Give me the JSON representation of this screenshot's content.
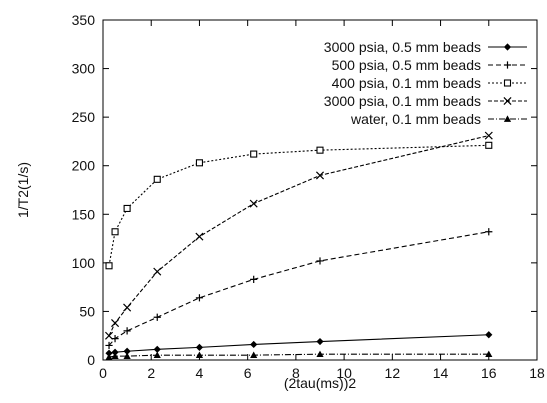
{
  "chart_data": {
    "type": "line",
    "title": "",
    "xlabel": "(2tau(ms))2",
    "ylabel": "1/T2(1/s)",
    "xlim": [
      0,
      18
    ],
    "ylim": [
      0,
      350
    ],
    "x_ticks": [
      0,
      2,
      4,
      6,
      8,
      10,
      12,
      14,
      16,
      18
    ],
    "y_ticks": [
      0,
      50,
      100,
      150,
      200,
      250,
      300,
      350
    ],
    "grid": false,
    "legend_position": "top-right",
    "series": [
      {
        "name": "3000 psia, 0.5 mm beads",
        "marker": "diamond-filled",
        "dash": "solid",
        "points": [
          [
            0.25,
            7
          ],
          [
            0.5,
            8
          ],
          [
            1.0,
            9
          ],
          [
            2.25,
            11
          ],
          [
            4.0,
            13
          ],
          [
            6.25,
            16
          ],
          [
            9.0,
            19
          ],
          [
            16.0,
            26
          ]
        ]
      },
      {
        "name": "500 psia, 0.5 mm beads",
        "marker": "plus",
        "dash": "dashed",
        "points": [
          [
            0.25,
            15
          ],
          [
            0.5,
            22
          ],
          [
            1.0,
            30
          ],
          [
            2.25,
            44
          ],
          [
            4.0,
            64
          ],
          [
            6.25,
            83
          ],
          [
            9.0,
            102
          ],
          [
            16.0,
            132
          ]
        ]
      },
      {
        "name": "400 psia, 0.1 mm beads",
        "marker": "square-open",
        "dash": "dotted",
        "points": [
          [
            0.25,
            97
          ],
          [
            0.5,
            132
          ],
          [
            1.0,
            156
          ],
          [
            2.25,
            186
          ],
          [
            4.0,
            203
          ],
          [
            6.25,
            212
          ],
          [
            9.0,
            216
          ],
          [
            16.0,
            221
          ]
        ]
      },
      {
        "name": "3000 psia, 0.1 mm beads",
        "marker": "x",
        "dash": "dense-dashed",
        "points": [
          [
            0.25,
            25
          ],
          [
            0.5,
            38
          ],
          [
            1.0,
            54
          ],
          [
            2.25,
            91
          ],
          [
            4.0,
            127
          ],
          [
            6.25,
            161
          ],
          [
            9.0,
            190
          ],
          [
            16.0,
            231
          ]
        ]
      },
      {
        "name": "water, 0.1 mm beads",
        "marker": "triangle-filled",
        "dash": "dash-dot",
        "points": [
          [
            0.25,
            3
          ],
          [
            0.5,
            4
          ],
          [
            1.0,
            4
          ],
          [
            2.25,
            5
          ],
          [
            4.0,
            5
          ],
          [
            6.25,
            5
          ],
          [
            9.0,
            6
          ],
          [
            16.0,
            6
          ]
        ]
      }
    ]
  }
}
